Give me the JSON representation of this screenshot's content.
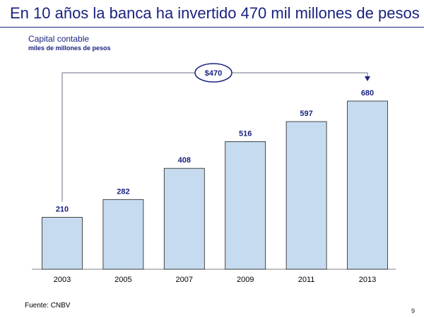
{
  "slide": {
    "title": "En 10 años la banca ha invertido 470 mil millones de pesos",
    "page_number": "9"
  },
  "chart_data": {
    "type": "bar",
    "title": "Capital contable",
    "subtitle": "miles de millones de pesos",
    "categories": [
      "2003",
      "2005",
      "2007",
      "2009",
      "2011",
      "2013"
    ],
    "values": [
      210,
      282,
      408,
      516,
      597,
      680
    ],
    "data_labels": [
      "210",
      "282",
      "408",
      "516",
      "597",
      "680"
    ],
    "ylim": [
      0,
      700
    ],
    "grid": false,
    "legend": "none",
    "annotation": {
      "label": "$470",
      "from_category": "2003",
      "to_category": "2013"
    },
    "source": "Fuente: CNBV"
  },
  "colors": {
    "bar_fill": "#c6dbef",
    "bar_stroke": "#1f1f1f",
    "accent": "#1a237e",
    "connector": "#6b7280",
    "axis": "#808080"
  }
}
